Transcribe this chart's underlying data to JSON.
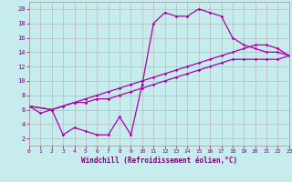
{
  "xlabel": "Windchill (Refroidissement éolien,°C)",
  "xlim": [
    0,
    23
  ],
  "ylim": [
    1,
    21
  ],
  "xticks": [
    0,
    1,
    2,
    3,
    4,
    5,
    6,
    7,
    8,
    9,
    10,
    11,
    12,
    13,
    14,
    15,
    16,
    17,
    18,
    19,
    20,
    21,
    22,
    23
  ],
  "yticks": [
    2,
    4,
    6,
    8,
    10,
    12,
    14,
    16,
    18,
    20
  ],
  "bg_color": "#c6ecee",
  "grid_color": "#b0b0b0",
  "line_color": "#aa00aa",
  "s1x": [
    0,
    1,
    2,
    3,
    4,
    5,
    6,
    7,
    8,
    9,
    10,
    11,
    12,
    13,
    14,
    15,
    16,
    17,
    18,
    19,
    20,
    21,
    22,
    23
  ],
  "s1y": [
    6.5,
    5.5,
    6.0,
    2.5,
    3.5,
    3.0,
    2.5,
    2.5,
    5.0,
    2.5,
    9.5,
    18.0,
    19.5,
    19.0,
    19.0,
    20.0,
    19.5,
    19.0,
    16.0,
    15.0,
    14.5,
    14.0,
    14.0,
    13.5
  ],
  "s2x": [
    0,
    2,
    3,
    4,
    5,
    6,
    7,
    8,
    9,
    10,
    11,
    12,
    13,
    14,
    15,
    16,
    17,
    18,
    19,
    20,
    21,
    22,
    23
  ],
  "s2y": [
    6.5,
    6.0,
    6.5,
    7.0,
    7.0,
    7.5,
    7.5,
    8.0,
    8.5,
    9.0,
    9.5,
    10.0,
    10.5,
    11.0,
    11.5,
    12.0,
    12.5,
    13.0,
    13.0,
    13.0,
    13.0,
    13.0,
    13.5
  ],
  "s3x": [
    0,
    2,
    3,
    4,
    5,
    6,
    7,
    8,
    9,
    10,
    11,
    12,
    13,
    14,
    15,
    16,
    17,
    18,
    19,
    20,
    21,
    22,
    23
  ],
  "s3y": [
    6.5,
    6.0,
    6.5,
    7.0,
    7.5,
    8.0,
    8.5,
    9.0,
    9.5,
    10.0,
    10.5,
    11.0,
    11.5,
    12.0,
    12.5,
    13.0,
    13.5,
    14.0,
    14.5,
    15.0,
    15.0,
    14.5,
    13.5
  ]
}
